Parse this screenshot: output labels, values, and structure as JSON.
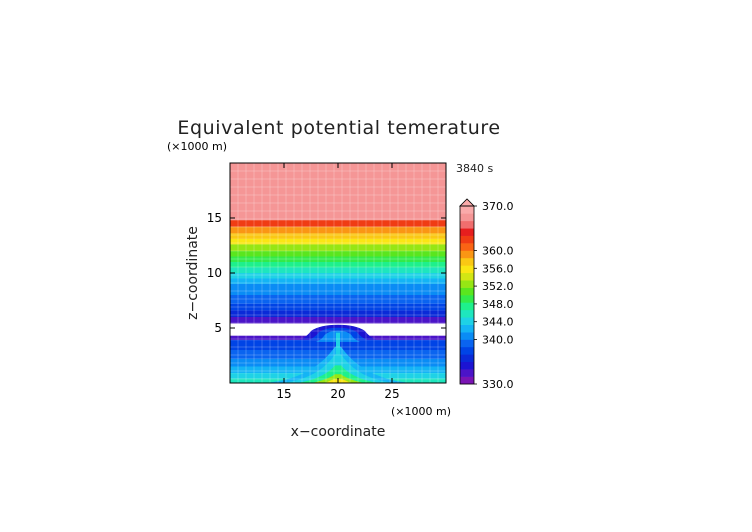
{
  "chart_data": {
    "type": "heatmap",
    "title": "Equivalent potential temerature",
    "xlabel": "x−coordinate",
    "ylabel": "z−coordinate",
    "x_unit": "(×1000 m)",
    "y_unit": "(×1000 m)",
    "time_label": "3840 s",
    "xlim": [
      10,
      30
    ],
    "ylim": [
      0,
      20
    ],
    "xticks": [
      "15",
      "20",
      "25"
    ],
    "yticks": [
      "5",
      "10",
      "15"
    ],
    "colorbar": {
      "min": 330,
      "max": 370,
      "tick_labels": [
        "370.0",
        "360.0",
        "356.0",
        "352.0",
        "348.0",
        "344.0",
        "340.0",
        "330.0"
      ],
      "tick_values": [
        370,
        360,
        356,
        352,
        348,
        344,
        340,
        330
      ],
      "colors": [
        "#7a14b4",
        "#4b14c8",
        "#1c14d2",
        "#0a2ad8",
        "#0044e6",
        "#0a64f0",
        "#0a8cf5",
        "#14b4f5",
        "#1ed2e6",
        "#1ee6be",
        "#1ef08c",
        "#32ea4a",
        "#5ae61e",
        "#96e614",
        "#d2e614",
        "#fae614",
        "#fac814",
        "#fa9614",
        "#fa6414",
        "#f03c14",
        "#e61e1e",
        "#f06e6e",
        "#f59696",
        "#faaaaa"
      ],
      "extend": "max"
    },
    "layers": [
      {
        "z_from": 14.8,
        "z_to": 20.0,
        "value": 368
      },
      {
        "z_from": 14.2,
        "z_to": 14.8,
        "value": 363
      },
      {
        "z_from": 13.6,
        "z_to": 14.2,
        "value": 359
      },
      {
        "z_from": 13.1,
        "z_to": 13.6,
        "value": 357
      },
      {
        "z_from": 12.6,
        "z_to": 13.1,
        "value": 355
      },
      {
        "z_from": 12.0,
        "z_to": 12.6,
        "value": 353
      },
      {
        "z_from": 11.5,
        "z_to": 12.0,
        "value": 351
      },
      {
        "z_from": 11.0,
        "z_to": 11.5,
        "value": 349
      },
      {
        "z_from": 10.5,
        "z_to": 11.0,
        "value": 347
      },
      {
        "z_from": 10.0,
        "z_to": 10.5,
        "value": 345.5
      },
      {
        "z_from": 9.5,
        "z_to": 10.0,
        "value": 344
      },
      {
        "z_from": 9.0,
        "z_to": 9.5,
        "value": 342.5
      },
      {
        "z_from": 8.5,
        "z_to": 9.0,
        "value": 341.5
      },
      {
        "z_from": 8.0,
        "z_to": 8.5,
        "value": 340.5
      },
      {
        "z_from": 7.2,
        "z_to": 8.0,
        "value": 339
      },
      {
        "z_from": 6.6,
        "z_to": 7.2,
        "value": 337
      },
      {
        "z_from": 6.0,
        "z_to": 6.6,
        "value": 335
      },
      {
        "z_from": 5.4,
        "z_to": 6.0,
        "value": 332
      }
    ],
    "lower_layers": [
      {
        "z_from": 3.9,
        "z_to": 4.3,
        "value": 332
      },
      {
        "z_from": 3.0,
        "z_to": 3.9,
        "value": 338
      },
      {
        "z_from": 2.2,
        "z_to": 3.0,
        "value": 339.5
      },
      {
        "z_from": 1.5,
        "z_to": 2.2,
        "value": 341
      },
      {
        "z_from": 0.9,
        "z_to": 1.5,
        "value": 342.5
      },
      {
        "z_from": 0.4,
        "z_to": 0.9,
        "value": 344
      },
      {
        "z_from": 0.0,
        "z_to": 0.4,
        "value": 346
      }
    ],
    "gap": {
      "z_from": 4.3,
      "z_to": 5.4
    },
    "bubble": {
      "center_x": 20,
      "width": 6.0,
      "top_z": 5.3,
      "base_z": 4.1,
      "core_value": 341,
      "rim_value": 334
    },
    "plume": {
      "center_x": 20,
      "values": [
        348,
        352,
        356
      ]
    }
  }
}
